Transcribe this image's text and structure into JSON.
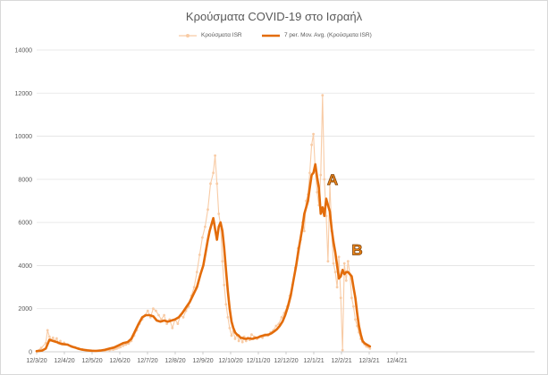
{
  "chart_data": {
    "type": "line",
    "title": "Κρούσματα COVID-19 στο Ισραήλ",
    "xlabel": "",
    "ylabel": "",
    "ylim": [
      0,
      14000
    ],
    "y_ticks": [
      0,
      2000,
      4000,
      6000,
      8000,
      10000,
      12000,
      14000
    ],
    "x_range_days": [
      0,
      366
    ],
    "x_ticks": [
      {
        "label": "12/3/20",
        "day": 0
      },
      {
        "label": "12/4/20",
        "day": 31
      },
      {
        "label": "12/5/20",
        "day": 61
      },
      {
        "label": "12/6/20",
        "day": 92
      },
      {
        "label": "12/7/20",
        "day": 122
      },
      {
        "label": "12/8/20",
        "day": 153
      },
      {
        "label": "12/9/20",
        "day": 184
      },
      {
        "label": "12/10/20",
        "day": 214
      },
      {
        "label": "12/11/20",
        "day": 245
      },
      {
        "label": "12/12/20",
        "day": 275
      },
      {
        "label": "12/1/21",
        "day": 306
      },
      {
        "label": "12/2/21",
        "day": 337
      },
      {
        "label": "12/3/21",
        "day": 365
      },
      {
        "label": "12/4/21",
        "day": 396
      }
    ],
    "grid": true,
    "legend_position": "top",
    "series": [
      {
        "name": "Κρούσματα ISR",
        "color": "#f8cba5",
        "style": "thin line with markers",
        "x": [
          0,
          5,
          10,
          12,
          14,
          16,
          18,
          20,
          22,
          24,
          26,
          28,
          30,
          34,
          38,
          42,
          46,
          50,
          55,
          60,
          65,
          70,
          75,
          80,
          84,
          86,
          88,
          90,
          92,
          95,
          98,
          101,
          104,
          107,
          110,
          113,
          116,
          119,
          122,
          125,
          128,
          131,
          134,
          137,
          140,
          143,
          146,
          149,
          152,
          155,
          158,
          161,
          164,
          167,
          170,
          173,
          176,
          179,
          182,
          185,
          188,
          191,
          194,
          196,
          198,
          200,
          202,
          204,
          206,
          208,
          210,
          212,
          214,
          216,
          218,
          220,
          222,
          224,
          226,
          228,
          230,
          232,
          234,
          236,
          239,
          242,
          245,
          248,
          251,
          254,
          257,
          260,
          263,
          266,
          269,
          272,
          275,
          278,
          281,
          284,
          287,
          290,
          292,
          294,
          296,
          298,
          300,
          302,
          304,
          306,
          308,
          310,
          312,
          314,
          316,
          318,
          320,
          322,
          324,
          326,
          328,
          330,
          332,
          334,
          336,
          338,
          340,
          342,
          344,
          346,
          348,
          350,
          352,
          354,
          356,
          358,
          360,
          362,
          364,
          366
        ],
        "values": [
          30,
          180,
          400,
          1000,
          700,
          550,
          650,
          500,
          620,
          400,
          500,
          350,
          420,
          330,
          260,
          210,
          160,
          120,
          80,
          60,
          40,
          40,
          50,
          70,
          100,
          130,
          150,
          190,
          220,
          280,
          330,
          380,
          500,
          750,
          1000,
          1300,
          1500,
          1700,
          1900,
          1600,
          2000,
          1900,
          1700,
          1500,
          1700,
          1300,
          1500,
          1100,
          1500,
          1300,
          1700,
          1600,
          1900,
          2100,
          2600,
          3000,
          3700,
          4500,
          5300,
          5800,
          6600,
          7800,
          8300,
          9100,
          7800,
          6400,
          5900,
          4200,
          3100,
          2200,
          1600,
          1100,
          750,
          950,
          600,
          800,
          500,
          650,
          450,
          700,
          500,
          650,
          550,
          800,
          700,
          600,
          700,
          650,
          800,
          750,
          900,
          1000,
          1200,
          1300,
          1600,
          1800,
          2100,
          2600,
          3100,
          3900,
          4800,
          5200,
          6000,
          5600,
          7000,
          7300,
          8300,
          9600,
          10100,
          8400,
          7400,
          6800,
          8200,
          11900,
          8000,
          6300,
          4200,
          7800,
          5600,
          4100,
          3700,
          3000,
          4400,
          2500,
          80,
          4100,
          3300,
          4200,
          3600,
          2500,
          2100,
          1500,
          1200,
          900,
          600,
          450,
          350,
          250,
          220,
          150
        ]
      },
      {
        "name": "7 per. Mov. Avg. (Κρούσματα ISR)",
        "color": "#e36c0a",
        "style": "thick line",
        "x": [
          0,
          6,
          10,
          14,
          18,
          22,
          26,
          30,
          34,
          38,
          42,
          46,
          50,
          55,
          60,
          65,
          70,
          75,
          80,
          85,
          90,
          95,
          100,
          104,
          108,
          112,
          116,
          120,
          124,
          128,
          132,
          136,
          140,
          144,
          148,
          152,
          156,
          160,
          164,
          168,
          172,
          176,
          180,
          183,
          186,
          188,
          190,
          192,
          194,
          196,
          198,
          200,
          202,
          204,
          206,
          208,
          210,
          212,
          214,
          216,
          218,
          220,
          222,
          224,
          226,
          228,
          230,
          232,
          234,
          236,
          238,
          240,
          243,
          246,
          249,
          252,
          255,
          258,
          261,
          264,
          267,
          270,
          273,
          276,
          279,
          282,
          285,
          288,
          290,
          292,
          294,
          296,
          298,
          300,
          302,
          304,
          306,
          308,
          310,
          312,
          314,
          316,
          318,
          320,
          322,
          324,
          326,
          328,
          330,
          332,
          334,
          336,
          338,
          340,
          342,
          344,
          346,
          348,
          350,
          352,
          354,
          356,
          358,
          360,
          362,
          364,
          366
        ],
        "values": [
          30,
          60,
          150,
          560,
          500,
          450,
          380,
          350,
          330,
          250,
          200,
          140,
          100,
          70,
          50,
          40,
          60,
          90,
          150,
          200,
          300,
          400,
          450,
          600,
          950,
          1300,
          1600,
          1700,
          1700,
          1650,
          1450,
          1400,
          1450,
          1400,
          1450,
          1500,
          1600,
          1800,
          2050,
          2300,
          2650,
          3000,
          3600,
          4000,
          4700,
          5200,
          5600,
          5900,
          6200,
          5700,
          5200,
          5800,
          6000,
          5600,
          4800,
          3800,
          2800,
          2000,
          1400,
          1100,
          900,
          800,
          750,
          650,
          640,
          610,
          600,
          620,
          620,
          600,
          610,
          640,
          660,
          720,
          760,
          780,
          800,
          860,
          950,
          1050,
          1200,
          1400,
          1700,
          2100,
          2600,
          3300,
          4000,
          4800,
          5300,
          5800,
          6400,
          6700,
          7000,
          7600,
          8200,
          8300,
          8700,
          8100,
          7600,
          6400,
          6700,
          6300,
          7100,
          6800,
          6500,
          5700,
          5100,
          4600,
          4000,
          3400,
          3500,
          3800,
          3600,
          3700,
          3700,
          3600,
          3500,
          3000,
          2500,
          1800,
          1200,
          800,
          500,
          400,
          350,
          300,
          250
        ]
      }
    ],
    "annotations": [
      {
        "text": "A",
        "x_day": 325,
        "y": 7750
      },
      {
        "text": "B",
        "x_day": 352,
        "y": 4500
      }
    ]
  }
}
